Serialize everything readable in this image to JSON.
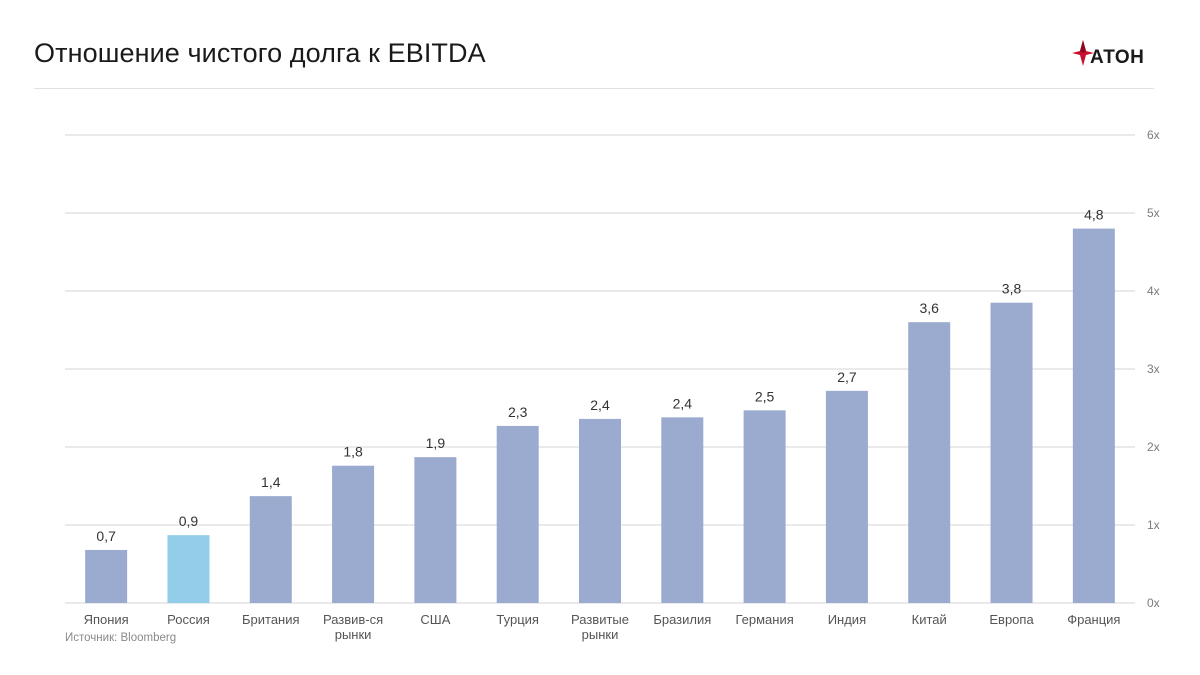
{
  "header": {
    "title": "Отношение чистого долга к EBITDA",
    "logo_text": "АТОН",
    "logo_colors": {
      "mark": "#c8102e",
      "mark_dark": "#8c0a20",
      "text": "#1a1a1a"
    }
  },
  "chart_data": {
    "type": "bar",
    "title": "Отношение чистого долга к EBITDA",
    "categories": [
      "Япония",
      "Россия",
      "Британия",
      "Развив-ся рынки",
      "США",
      "Турция",
      "Развитые рынки",
      "Бразилия",
      "Германия",
      "Индия",
      "Китай",
      "Европа",
      "Франция"
    ],
    "category_lines": [
      [
        "Япония"
      ],
      [
        "Россия"
      ],
      [
        "Британия"
      ],
      [
        "Развив-ся",
        "рынки"
      ],
      [
        "США"
      ],
      [
        "Турция"
      ],
      [
        "Развитые",
        "рынки"
      ],
      [
        "Бразилия"
      ],
      [
        "Германия"
      ],
      [
        "Индия"
      ],
      [
        "Китай"
      ],
      [
        "Европа"
      ],
      [
        "Франция"
      ]
    ],
    "values": [
      0.68,
      0.87,
      1.37,
      1.76,
      1.87,
      2.27,
      2.36,
      2.38,
      2.47,
      2.72,
      3.6,
      3.85,
      4.8
    ],
    "data_labels": [
      "0,7",
      "0,9",
      "1,4",
      "1,8",
      "1,9",
      "2,3",
      "2,4",
      "2,4",
      "2,5",
      "2,7",
      "3,6",
      "3,8",
      "4,8"
    ],
    "highlight_index": 1,
    "colors": {
      "bar": "#9aabcf",
      "highlight": "#92cde9",
      "grid": "#d6d6d6",
      "tick_text": "#7a7a7a",
      "label_text": "#333333",
      "category_text": "#555555"
    },
    "ylim": [
      0,
      6
    ],
    "y_ticks": [
      0,
      1,
      2,
      3,
      4,
      5,
      6
    ],
    "y_tick_labels": [
      "0x",
      "1x",
      "2x",
      "3x",
      "4x",
      "5x",
      "6x"
    ],
    "y_axis_side": "right",
    "grid": true,
    "xlabel": "",
    "ylabel": ""
  },
  "footer": {
    "source": "Источник: Bloomberg"
  }
}
